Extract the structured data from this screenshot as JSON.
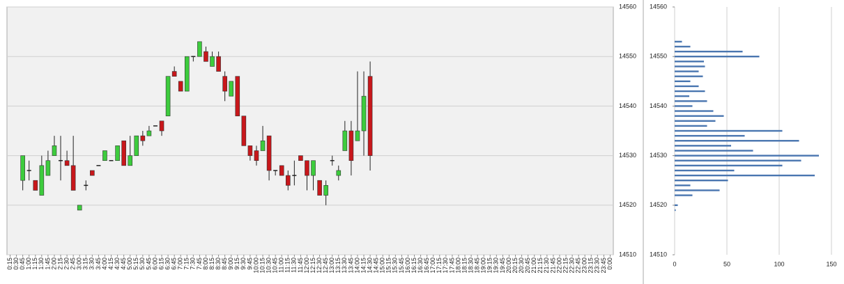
{
  "chart_data": [
    {
      "type": "candlestick",
      "categories": [
        "0:15",
        "0:30",
        "0:45",
        "1:00",
        "1:15",
        "1:30",
        "1:45",
        "2:00",
        "2:15",
        "2:30",
        "2:45",
        "3:00",
        "3:15",
        "3:30",
        "3:45",
        "4:00",
        "4:15",
        "4:30",
        "4:45",
        "5:00",
        "5:15",
        "5:30",
        "5:45",
        "6:00",
        "6:15",
        "6:30",
        "6:45",
        "7:00",
        "7:15",
        "7:30",
        "7:45",
        "8:00",
        "8:15",
        "8:30",
        "8:45",
        "9:00",
        "9:15",
        "9:30",
        "9:45",
        "10:00",
        "10:15",
        "10:30",
        "10:45",
        "11:00",
        "11:15",
        "11:30",
        "11:45",
        "12:00",
        "12:15",
        "12:30",
        "12:45",
        "13:00",
        "13:15",
        "13:30",
        "13:45",
        "14:00",
        "14:15",
        "14:30",
        "14:45",
        "15:00",
        "15:15",
        "15:30",
        "15:45",
        "16:00",
        "16:15",
        "16:30",
        "16:45",
        "17:00",
        "17:15",
        "17:30",
        "17:45",
        "18:00",
        "18:15",
        "18:30",
        "18:45",
        "19:00",
        "19:15",
        "19:30",
        "19:45",
        "20:00",
        "20:15",
        "20:30",
        "20:45",
        "21:00",
        "21:15",
        "21:30",
        "21:45",
        "22:00",
        "22:15",
        "22:30",
        "22:45",
        "23:00",
        "23:15",
        "23:30",
        "23:45",
        "0:00"
      ],
      "open": [
        null,
        null,
        14525,
        14527,
        14525,
        14522,
        14526,
        14530,
        14529,
        14529,
        14528,
        14519,
        14524,
        14527,
        14528,
        14529,
        14529,
        14529,
        14533,
        14528,
        14530,
        14534,
        14534,
        14536,
        14537,
        14538,
        14547,
        14545,
        14543,
        14550,
        14550,
        14551,
        14548,
        14550,
        14546,
        14542,
        14546,
        14538,
        14532,
        14531,
        14531,
        14534,
        14527,
        14528,
        14526,
        14526,
        14530,
        14529,
        14526,
        14525,
        14522,
        14529,
        14526,
        14531,
        14535,
        14533,
        14535,
        14546,
        null,
        null,
        null,
        null,
        null,
        null,
        null,
        null,
        null,
        null,
        null,
        null,
        null,
        null,
        null,
        null,
        null,
        null,
        null,
        null,
        null,
        null,
        null,
        null,
        null,
        null,
        null,
        null,
        null,
        null,
        null,
        null,
        null,
        null,
        null,
        null,
        null,
        null
      ],
      "high": [
        null,
        null,
        14530,
        14529,
        14525,
        14530,
        14531,
        14534,
        14534,
        14531,
        14534,
        14520,
        14525,
        14527,
        14528,
        14531,
        14529,
        14532,
        14533,
        14534,
        14534,
        14535,
        14536,
        14536,
        14537,
        14546,
        14548,
        14545,
        14550,
        14550,
        14553,
        14552,
        14551,
        14551,
        14547,
        14545,
        14546,
        14538,
        14532,
        14532,
        14536,
        14534,
        14527,
        14528,
        14527,
        14529,
        14530,
        14529,
        14529,
        14525,
        14525,
        14530,
        14528,
        14537,
        14537,
        14547,
        14547,
        14549,
        null,
        null,
        null,
        null,
        null,
        null,
        null,
        null,
        null,
        null,
        null,
        null,
        null,
        null,
        null,
        null,
        null,
        null,
        null,
        null,
        null,
        null,
        null,
        null,
        null,
        null,
        null,
        null,
        null,
        null,
        null,
        null,
        null,
        null,
        null,
        null,
        null,
        null
      ],
      "low": [
        null,
        null,
        14523,
        14525,
        14523,
        14522,
        14526,
        14530,
        14525,
        14528,
        14523,
        14519,
        14523,
        14526,
        14528,
        14529,
        14529,
        14529,
        14528,
        14528,
        14530,
        14532,
        14534,
        14536,
        14534,
        14538,
        14546,
        14543,
        14543,
        14549,
        14550,
        14549,
        14548,
        14547,
        14541,
        14542,
        14538,
        14532,
        14529,
        14528,
        14531,
        14525,
        14526,
        14526,
        14523,
        14524,
        14529,
        14523,
        14523,
        14522,
        14520,
        14528,
        14525,
        14531,
        14526,
        14533,
        14530,
        14527,
        null,
        null,
        null,
        null,
        null,
        null,
        null,
        null,
        null,
        null,
        null,
        null,
        null,
        null,
        null,
        null,
        null,
        null,
        null,
        null,
        null,
        null,
        null,
        null,
        null,
        null,
        null,
        null,
        null,
        null,
        null,
        null,
        null,
        null,
        null,
        null,
        null,
        null
      ],
      "close": [
        null,
        null,
        14530,
        14527,
        14523,
        14528,
        14529,
        14532,
        14529,
        14528,
        14523,
        14520,
        14524,
        14526,
        14528,
        14531,
        14529,
        14532,
        14528,
        14530,
        14534,
        14533,
        14535,
        14536,
        14535,
        14546,
        14546,
        14543,
        14550,
        14550,
        14553,
        14549,
        14550,
        14547,
        14543,
        14545,
        14538,
        14532,
        14530,
        14529,
        14533,
        14527,
        14527,
        14526,
        14524,
        14526,
        14529,
        14526,
        14529,
        14522,
        14524,
        14529,
        14527,
        14535,
        14529,
        14535,
        14542,
        14530,
        null,
        null,
        null,
        null,
        null,
        null,
        null,
        null,
        null,
        null,
        null,
        null,
        null,
        null,
        null,
        null,
        null,
        null,
        null,
        null,
        null,
        null,
        null,
        null,
        null,
        null,
        null,
        null,
        null,
        null,
        null,
        null,
        null,
        null,
        null,
        null,
        null,
        null
      ],
      "up_color": "#3dcc3d",
      "down_color": "#c8171b",
      "ylim": [
        14510,
        14560
      ],
      "yticks": [
        14510,
        14520,
        14530,
        14540,
        14550,
        14560
      ],
      "grid": true
    },
    {
      "type": "bar",
      "orientation": "horizontal",
      "y": [
        14519,
        14520,
        14521,
        14522,
        14523,
        14524,
        14525,
        14526,
        14527,
        14528,
        14529,
        14530,
        14531,
        14532,
        14533,
        14534,
        14535,
        14536,
        14537,
        14538,
        14539,
        14540,
        14541,
        14542,
        14543,
        14544,
        14545,
        14546,
        14547,
        14548,
        14549,
        14550,
        14551,
        14552,
        14553
      ],
      "values": [
        1,
        3,
        0,
        17,
        43,
        15,
        51,
        134,
        57,
        103,
        121,
        138,
        75,
        54,
        119,
        67,
        103,
        31,
        39,
        47,
        37,
        17,
        31,
        14,
        29,
        23,
        15,
        27,
        23,
        29,
        28,
        81,
        65,
        15,
        7
      ],
      "color": "#4a76b0",
      "xlim": [
        0,
        150
      ],
      "xticks": [
        0,
        50,
        100,
        150
      ],
      "ylim": [
        14510,
        14560
      ],
      "yticks": [
        14510,
        14520,
        14530,
        14540,
        14550,
        14560
      ],
      "grid": true
    }
  ]
}
